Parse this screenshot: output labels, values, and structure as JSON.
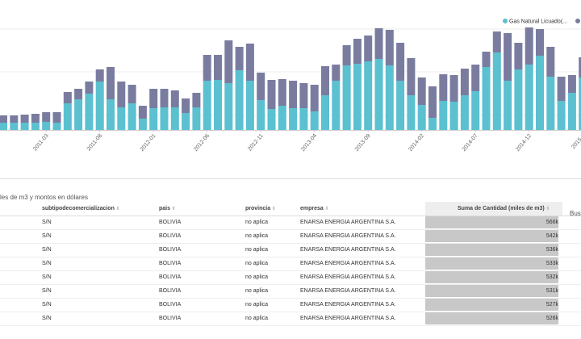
{
  "chart_data": {
    "type": "bar",
    "stacked": true,
    "categories": [
      null,
      null,
      null,
      null,
      "2011-03",
      null,
      null,
      null,
      null,
      "2011-08",
      null,
      null,
      null,
      null,
      "2012-01",
      null,
      null,
      null,
      null,
      "2012-06",
      null,
      null,
      null,
      null,
      "2012-11",
      null,
      null,
      null,
      null,
      "2013-04",
      null,
      null,
      null,
      null,
      "2013-09",
      null,
      null,
      null,
      null,
      "2014-02",
      null,
      null,
      null,
      null,
      "2014-07",
      null,
      null,
      null,
      null,
      "2014-12",
      null,
      null,
      null,
      null,
      "2015-0"
    ],
    "series": [
      {
        "name": "Gas Natural Licuado(...",
        "color": "#5bc0d0",
        "values": [
          9,
          9,
          9,
          9,
          10,
          9,
          33,
          38,
          45,
          60,
          38,
          28,
          33,
          14,
          27,
          28,
          28,
          21,
          28,
          61,
          62,
          58,
          74,
          61,
          37,
          26,
          30,
          27,
          27,
          23,
          43,
          61,
          80,
          82,
          85,
          88,
          80,
          61,
          43,
          31,
          15,
          36,
          35,
          43,
          48,
          78,
          96,
          61,
          75,
          81,
          92,
          66,
          36,
          46,
          65
        ]
      },
      {
        "name": null,
        "color": "#7a7c9f",
        "values": [
          9,
          9,
          10,
          11,
          12,
          13,
          14,
          13,
          15,
          15,
          40,
          32,
          23,
          16,
          24,
          23,
          21,
          18,
          18,
          32,
          31,
          53,
          29,
          46,
          34,
          36,
          33,
          34,
          31,
          33,
          36,
          20,
          25,
          31,
          32,
          38,
          44,
          47,
          46,
          34,
          39,
          33,
          33,
          33,
          33,
          19,
          26,
          59,
          33,
          46,
          33,
          37,
          30,
          22,
          25
        ]
      }
    ],
    "ylim": [
      0,
      125
    ],
    "legend": "top-right"
  },
  "table": {
    "title": "les de m3 y montos en dólares",
    "search": "Bus",
    "columns": [
      "subtipodecomercializacion",
      "pais",
      "provincia",
      "empresa",
      "Suma de Cantidad (miles de m3)"
    ],
    "rows": [
      [
        "S/N",
        "BOLIVIA",
        "no aplica",
        "ENARSA ENERGIA ARGENTINA S.A.",
        "566k"
      ],
      [
        "S/N",
        "BOLIVIA",
        "no aplica",
        "ENARSA ENERGIA ARGENTINA S.A.",
        "542k"
      ],
      [
        "S/N",
        "BOLIVIA",
        "no aplica",
        "ENARSA ENERGIA ARGENTINA S.A.",
        "536k"
      ],
      [
        "S/N",
        "BOLIVIA",
        "no aplica",
        "ENARSA ENERGIA ARGENTINA S.A.",
        "533k"
      ],
      [
        "S/N",
        "BOLIVIA",
        "no aplica",
        "ENARSA ENERGIA ARGENTINA S.A.",
        "532k"
      ],
      [
        "S/N",
        "BOLIVIA",
        "no aplica",
        "ENARSA ENERGIA ARGENTINA S.A.",
        "531k"
      ],
      [
        "S/N",
        "BOLIVIA",
        "no aplica",
        "ENARSA ENERGIA ARGENTINA S.A.",
        "527k"
      ],
      [
        "S/N",
        "BOLIVIA",
        "no aplica",
        "ENARSA ENERGIA ARGENTINA S.A.",
        "526k"
      ]
    ]
  }
}
